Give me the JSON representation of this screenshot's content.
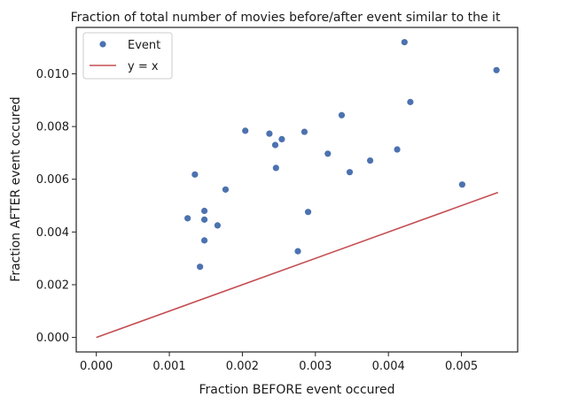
{
  "chart_data": {
    "type": "scatter",
    "title": "Fraction of total number of movies before/after event similar to the it",
    "xlabel": "Fraction BEFORE event occured",
    "ylabel": "Fraction AFTER event occured",
    "xlim": [
      -0.000275,
      0.00577
    ],
    "ylim": [
      -0.00055,
      0.01176
    ],
    "xticks": [
      0.0,
      0.001,
      0.002,
      0.003,
      0.004,
      0.005
    ],
    "xtick_labels": [
      "0.000",
      "0.001",
      "0.002",
      "0.003",
      "0.004",
      "0.005"
    ],
    "yticks": [
      0.0,
      0.002,
      0.004,
      0.006,
      0.008,
      0.01
    ],
    "ytick_labels": [
      "0.000",
      "0.002",
      "0.004",
      "0.006",
      "0.008",
      "0.010"
    ],
    "grid": false,
    "legend_position": "top-left",
    "series": [
      {
        "name": "Event",
        "kind": "scatter",
        "color": "#4c72b0",
        "x": [
          0.00125,
          0.00135,
          0.00142,
          0.00148,
          0.00148,
          0.00148,
          0.00166,
          0.00177,
          0.00204,
          0.00237,
          0.00246,
          0.00245,
          0.00254,
          0.00276,
          0.00285,
          0.0029,
          0.00317,
          0.00336,
          0.00347,
          0.00375,
          0.00412,
          0.00422,
          0.0043,
          0.00501,
          0.00548
        ],
        "y": [
          0.00452,
          0.00618,
          0.00268,
          0.0048,
          0.00447,
          0.00368,
          0.00425,
          0.00561,
          0.00784,
          0.00773,
          0.00643,
          0.0073,
          0.00752,
          0.00327,
          0.0078,
          0.00476,
          0.00697,
          0.00843,
          0.00627,
          0.00671,
          0.00713,
          0.0112,
          0.00893,
          0.0058,
          0.01014
        ]
      },
      {
        "name": "y = x",
        "kind": "line",
        "color": "#c44e52",
        "x": [
          0.0,
          0.0055
        ],
        "y": [
          0.0,
          0.0055
        ]
      }
    ]
  }
}
